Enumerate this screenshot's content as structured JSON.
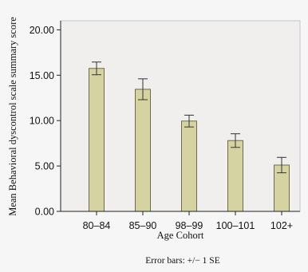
{
  "chart_data": {
    "type": "bar",
    "title": "",
    "xlabel": "Age Cohort",
    "ylabel": "Mean Behavioral dyscontrol scale summary score",
    "categories": [
      "80–84",
      "85–90",
      "98–99",
      "100–101",
      "102+"
    ],
    "values": [
      15.75,
      13.45,
      9.95,
      7.8,
      5.1
    ],
    "errors": [
      0.7,
      1.15,
      0.65,
      0.75,
      0.85
    ],
    "ylim": [
      0,
      21
    ],
    "yticks": [
      0,
      5,
      10,
      15,
      20
    ],
    "ytick_labels": [
      "0.00",
      "5.00",
      "10.00",
      "15.00",
      "20.00"
    ],
    "grid": false,
    "note": "Error bars: +/− 1 SE",
    "colors": {
      "bar_fill": "#d6d3a2",
      "bar_stroke": "#6e6b48",
      "plot_bg": "#f0efee",
      "page_bg": "#f6f6f6",
      "axis": "#222222"
    }
  }
}
